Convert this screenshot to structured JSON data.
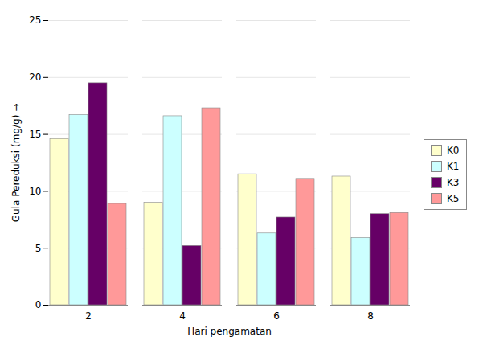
{
  "chart_data": {
    "type": "bar",
    "categories": [
      "2",
      "4",
      "6",
      "8"
    ],
    "series": [
      {
        "name": "K0",
        "color": "#FFFFCC",
        "values": [
          14.6,
          9.0,
          11.5,
          11.3
        ]
      },
      {
        "name": "K1",
        "color": "#CCFFFF",
        "values": [
          16.7,
          16.6,
          6.3,
          5.9
        ]
      },
      {
        "name": "K3",
        "color": "#660066",
        "values": [
          19.5,
          5.2,
          7.7,
          8.0
        ]
      },
      {
        "name": "K5",
        "color": "#FF9999",
        "values": [
          8.9,
          17.3,
          11.1,
          8.1
        ]
      }
    ],
    "xlabel": "Hari pengamatan",
    "ylabel": "Gula Pereduksi (mg/g)",
    "ylim": [
      0,
      25
    ],
    "yticks": [
      0,
      5,
      10,
      15,
      20,
      25
    ],
    "grid": true,
    "legend": "right"
  }
}
